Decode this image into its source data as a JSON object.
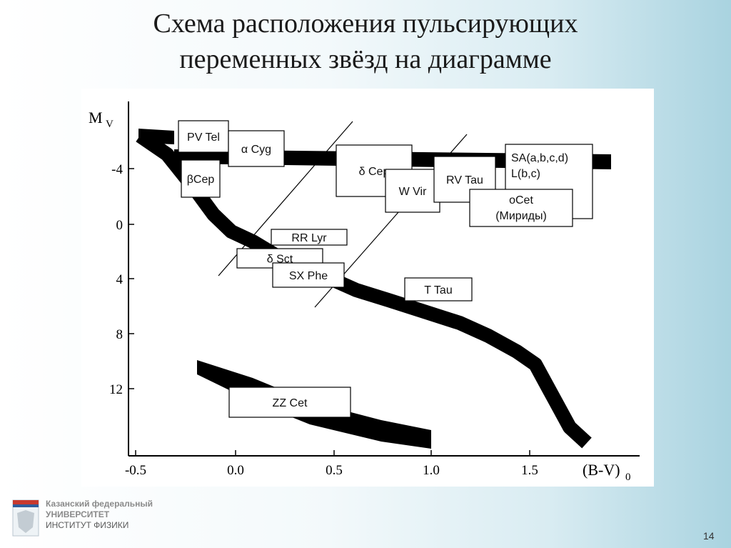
{
  "slide": {
    "title_line1": "Схема расположения пульсирующих",
    "title_line2": "переменных звёзд на диаграмме",
    "page_number": "14"
  },
  "footer": {
    "line1": "Казанский федеральный",
    "line2": "УНИВЕРСИТЕТ",
    "line3": "ИНСТИТУТ ФИЗИКИ"
  },
  "diagram": {
    "y_axis_label": "M",
    "y_axis_sub": "V",
    "x_axis_label": "(B-V)",
    "x_axis_sub": "0",
    "y_ticks": [
      "-4",
      "0",
      "4",
      "8",
      "12"
    ],
    "x_ticks": [
      "-0.5",
      "0.0",
      "0.5",
      "1.0",
      "1.5"
    ],
    "x_range": [
      -0.55,
      2.05
    ],
    "y_range": [
      -8.0,
      17.0
    ],
    "star_classes": [
      {
        "id": "pv-tel",
        "line1": "PV Tel"
      },
      {
        "id": "alpha-cyg",
        "line1": "α Cyg"
      },
      {
        "id": "beta-cep",
        "line1": "βCep"
      },
      {
        "id": "delta-cep",
        "line1": "δ Cep"
      },
      {
        "id": "w-vir",
        "line1": "W Vir"
      },
      {
        "id": "rv-tau",
        "line1": "RV Tau"
      },
      {
        "id": "sa",
        "line1": "SA(a,b,c,d)",
        "line2": "L(b,c)"
      },
      {
        "id": "o-cet",
        "line1": "οCet",
        "line2": "(Мириды)"
      },
      {
        "id": "rr-lyr",
        "line1": "RR Lyr"
      },
      {
        "id": "delta-sct",
        "line1": "δ Sct"
      },
      {
        "id": "sx-phe",
        "line1": "SX Phe"
      },
      {
        "id": "t-tau",
        "line1": "T Tau"
      },
      {
        "id": "zz-cet",
        "line1": "ZZ Cet"
      }
    ]
  }
}
